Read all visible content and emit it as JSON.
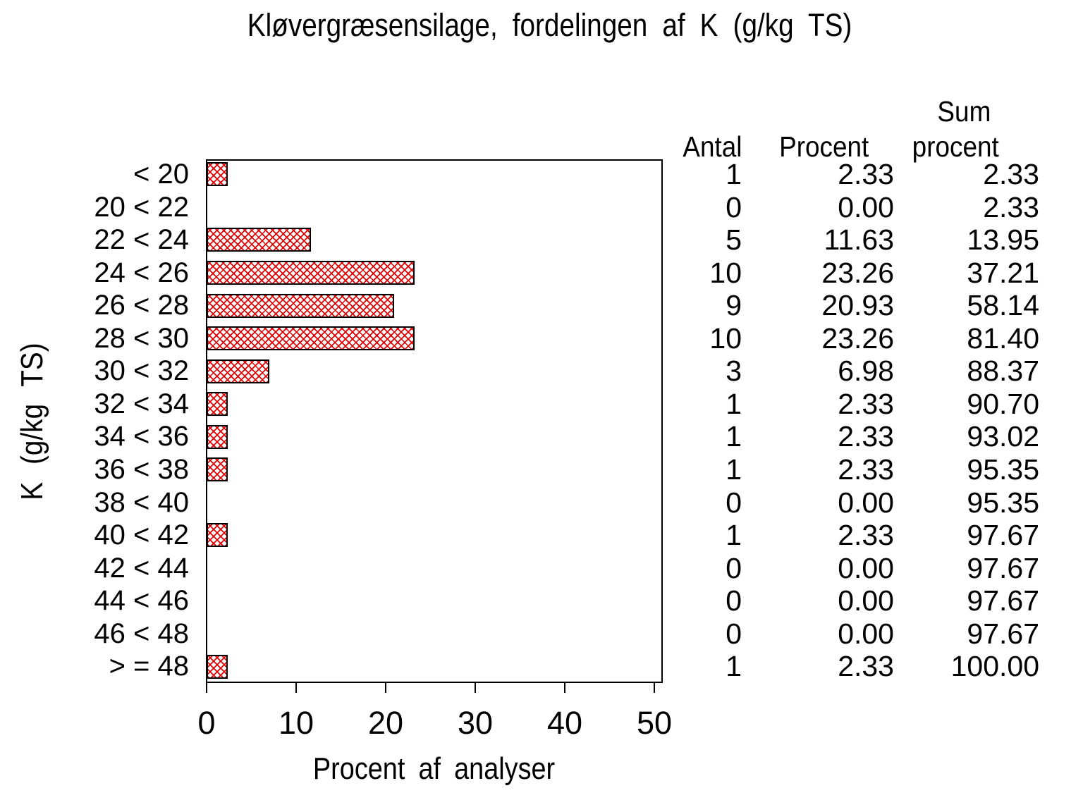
{
  "accent_colors": {
    "hatch_red": "#e00000",
    "bar_border": "#000000",
    "text": "#000000",
    "background": "#ffffff"
  },
  "chart_data": {
    "type": "bar",
    "orientation": "horizontal",
    "title": "Kløvergræsensilage, fordelingen af K (g/kg TS)",
    "xlabel": "Procent af analyser",
    "ylabel": "K (g/kg TS)",
    "xlim": [
      0,
      50
    ],
    "x_ticks": [
      0,
      10,
      20,
      30,
      40,
      50
    ],
    "grid": false,
    "legend": null,
    "bar_pattern": "red diagonal crosshatch on white with black outline",
    "categories": [
      "< 20",
      "20 < 22",
      "22 < 24",
      "24 < 26",
      "26 < 28",
      "28 < 30",
      "30 < 32",
      "32 < 34",
      "34 < 36",
      "36 < 38",
      "38 < 40",
      "40 < 42",
      "42 < 44",
      "44 < 46",
      "46 < 48",
      "> = 48"
    ],
    "series": [
      {
        "name": "Antal",
        "values": [
          "1",
          "0",
          "5",
          "10",
          "9",
          "10",
          "3",
          "1",
          "1",
          "1",
          "0",
          "1",
          "0",
          "0",
          "0",
          "1"
        ]
      },
      {
        "name": "Procent",
        "values": [
          "2.33",
          "0.00",
          "11.63",
          "23.26",
          "20.93",
          "23.26",
          "6.98",
          "2.33",
          "2.33",
          "2.33",
          "0.00",
          "2.33",
          "0.00",
          "0.00",
          "0.00",
          "2.33"
        ]
      },
      {
        "name": "Sum procent",
        "values": [
          "2.33",
          "2.33",
          "13.95",
          "37.21",
          "58.14",
          "81.40",
          "88.37",
          "90.70",
          "93.02",
          "95.35",
          "95.35",
          "97.67",
          "97.67",
          "97.67",
          "97.67",
          "100.00"
        ]
      }
    ],
    "bars_plot_series": "Procent"
  },
  "table": {
    "headers": {
      "antal": "Antal",
      "procent": "Procent",
      "sum_line1": "Sum",
      "sum_line2": "procent"
    }
  }
}
